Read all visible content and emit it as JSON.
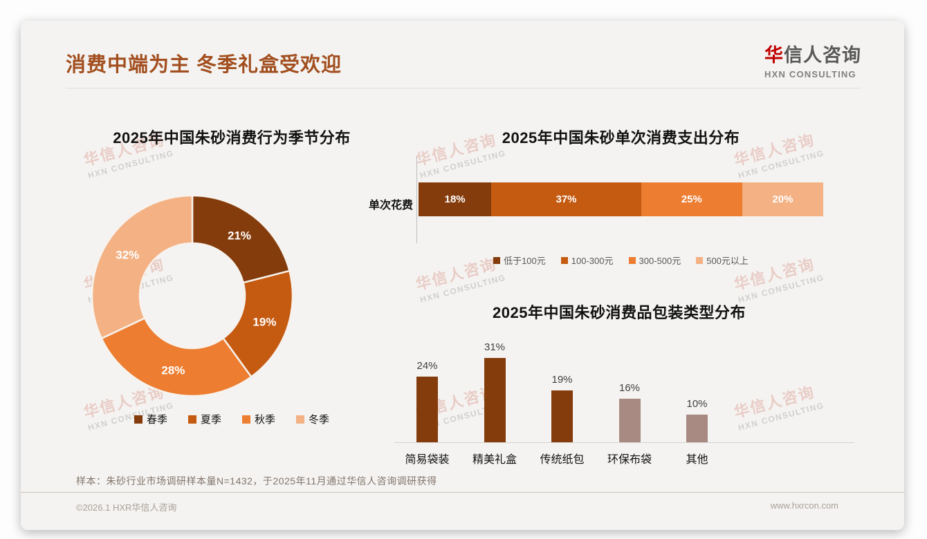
{
  "page": {
    "title": "消费中端为主 冬季礼盒受欢迎",
    "logo": {
      "cn_first": "华",
      "cn_rest": "信人咨询",
      "en": "HXN CONSULTING"
    },
    "watermark": {
      "line1": "华信人咨询",
      "line2": "HXN CONSULTING"
    },
    "footnote": "样本：朱砂行业市场调研样本量N=1432，于2025年11月通过华信人咨询调研获得",
    "footer": {
      "left": "©2026.1 HXR华信人咨询",
      "right": "www.hxrcon.com"
    }
  },
  "colors": {
    "title_brown": "#a24e1e",
    "logo_red": "#c00000",
    "palette": [
      "#843C0C",
      "#C55A11",
      "#ED7D31",
      "#F4B183"
    ],
    "bar_brown": "#843C0C",
    "bar_mauve": "#A98A83",
    "card_bg": "#f4f3f1"
  },
  "chart_data": [
    {
      "type": "pie",
      "subtype": "donut",
      "title": "2025年中国朱砂消费行为季节分布",
      "labels": [
        "春季",
        "夏季",
        "秋季",
        "冬季"
      ],
      "values": [
        21,
        19,
        28,
        32
      ],
      "value_labels": [
        "21%",
        "19%",
        "28%",
        "32%"
      ],
      "colors": [
        "#843C0C",
        "#C55A11",
        "#ED7D31",
        "#F4B183"
      ],
      "start_angle_deg": 0,
      "direction": "clockwise",
      "legend_position": "bottom"
    },
    {
      "type": "bar",
      "subtype": "stacked-horizontal",
      "title": "2025年中国朱砂单次消费支出分布",
      "row_label": "单次花费",
      "categories": [
        "低于100元",
        "100-300元",
        "300-500元",
        "500元以上"
      ],
      "values": [
        18,
        37,
        25,
        20
      ],
      "value_labels": [
        "18%",
        "37%",
        "25%",
        "20%"
      ],
      "colors": [
        "#843C0C",
        "#C55A11",
        "#ED7D31",
        "#F4B183"
      ],
      "xlim": [
        0,
        100
      ],
      "legend_position": "bottom"
    },
    {
      "type": "bar",
      "subtype": "vertical",
      "title": "2025年中国朱砂消费品包装类型分布",
      "categories": [
        "简易袋装",
        "精美礼盒",
        "传统纸包",
        "环保布袋",
        "其他"
      ],
      "values": [
        24,
        31,
        19,
        16,
        10
      ],
      "value_labels": [
        "24%",
        "31%",
        "19%",
        "16%",
        "10%"
      ],
      "colors": [
        "#843C0C",
        "#843C0C",
        "#843C0C",
        "#A98A83",
        "#A98A83"
      ],
      "ylim": [
        0,
        35
      ],
      "grid": false
    }
  ]
}
